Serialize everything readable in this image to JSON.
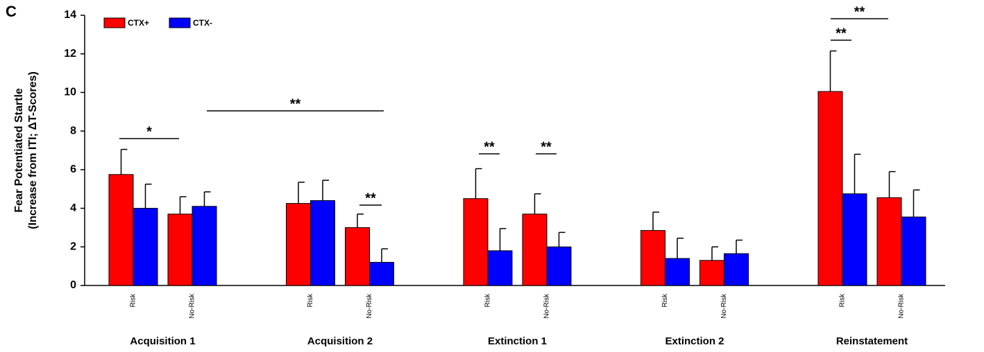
{
  "chart_data": {
    "type": "bar",
    "panel_label": "C",
    "ylabel": [
      "Fear Potentiated Startle",
      "(Increase from ITI; ΔT-Scores)"
    ],
    "groups": [
      "Acquisition 1",
      "Acquisition 2",
      "Extinction 1",
      "Extinction 2",
      "Reinstatement"
    ],
    "categories": [
      "Risk",
      "No-Risk",
      "Risk",
      "No-Risk",
      "Risk",
      "No-Risk",
      "Risk",
      "No-Risk",
      "Risk",
      "No-Risk"
    ],
    "series": [
      {
        "name": "CTX+",
        "color": "#ff0000",
        "values": [
          5.75,
          3.7,
          4.25,
          3.0,
          4.5,
          3.7,
          2.85,
          1.3,
          10.05,
          4.55
        ],
        "errors": [
          1.3,
          0.9,
          1.1,
          0.7,
          1.55,
          1.05,
          0.95,
          0.7,
          2.1,
          1.35
        ]
      },
      {
        "name": "CTX-",
        "color": "#0000ff",
        "values": [
          4.0,
          4.1,
          4.4,
          1.2,
          1.8,
          2.0,
          1.4,
          1.65,
          4.75,
          3.55
        ],
        "errors": [
          1.25,
          0.75,
          1.05,
          0.7,
          1.15,
          0.75,
          1.05,
          0.7,
          2.05,
          1.4
        ]
      }
    ],
    "annotations": [
      "*",
      "**",
      "**",
      "**",
      "**",
      "**",
      "**"
    ],
    "ylim": [
      0,
      14
    ],
    "yticks": [
      0,
      2,
      4,
      6,
      8,
      10,
      12,
      14
    ]
  }
}
